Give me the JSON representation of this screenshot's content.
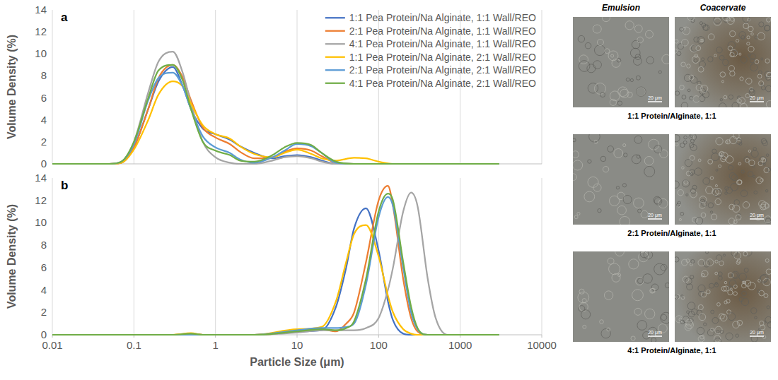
{
  "chart_data": [
    {
      "type": "line",
      "title": "a",
      "ylabel": "Volume Density (%)",
      "log": "x",
      "grid": "x",
      "legend": "upper right",
      "tick_labels": "y",
      "xlim": [
        0.01,
        10000
      ],
      "xticks": [
        0.01,
        0.1,
        1,
        10,
        100,
        1000,
        10000
      ],
      "ylim": [
        0,
        14
      ],
      "yticks": [
        0,
        2,
        4,
        6,
        8,
        10,
        12,
        14
      ],
      "x": [
        0.01,
        0.05,
        0.07,
        0.1,
        0.15,
        0.2,
        0.3,
        0.4,
        0.5,
        0.7,
        1,
        1.5,
        2,
        3,
        5,
        7,
        10,
        15,
        20,
        30,
        50,
        70,
        100,
        150,
        3000
      ],
      "series": [
        {
          "name": "1:1 Pea Protein/Na Alginate, 1:1 Wall/REO",
          "color": "#4472c4",
          "values": [
            0,
            0,
            0.1,
            1.5,
            5,
            7.5,
            8.8,
            7,
            5,
            3.2,
            2.7,
            2.2,
            1.6,
            1,
            0.5,
            0.7,
            0.8,
            0.6,
            0.3,
            0,
            0,
            0,
            0,
            0,
            0
          ]
        },
        {
          "name": "2:1 Pea Protein/Na Alginate, 1:1 Wall/REO",
          "color": "#ed7d31",
          "values": [
            0,
            0,
            0.1,
            1.5,
            5,
            7.8,
            9,
            7.8,
            5.8,
            3.3,
            2.4,
            1.8,
            1.1,
            0.5,
            0.6,
            1.1,
            1.4,
            1.2,
            0.7,
            0.1,
            0,
            0,
            0,
            0,
            0
          ]
        },
        {
          "name": "4:1 Pea Protein/Na Alginate, 1:1 Wall/REO",
          "color": "#a5a5a5",
          "values": [
            0,
            0,
            0.2,
            2,
            6.5,
            9.3,
            10.2,
            8.2,
            5.5,
            2,
            0.6,
            0.1,
            0,
            0,
            0.3,
            0.6,
            0.7,
            0.5,
            0.2,
            0,
            0,
            0,
            0,
            0,
            0
          ]
        },
        {
          "name": "1:1 Pea Protein/Na Alginate, 2:1 Wall/REO",
          "color": "#ffc000",
          "values": [
            0,
            0,
            0.1,
            1.3,
            4,
            6.3,
            7.5,
            7,
            5.5,
            3.5,
            2.7,
            2.3,
            1.6,
            0.9,
            0.6,
            1,
            1.3,
            0.9,
            0.5,
            0.3,
            0.55,
            0.5,
            0.2,
            0,
            0
          ]
        },
        {
          "name": "2:1 Pea Protein/Na Alginate, 2:1 Wall/REO",
          "color": "#5b9bd5",
          "values": [
            0,
            0,
            0.2,
            1.8,
            5.8,
            7.8,
            8.3,
            7,
            5,
            2.5,
            1.5,
            1,
            0.4,
            0.1,
            0.6,
            1.2,
            1.8,
            1.6,
            1,
            0.1,
            0,
            0,
            0,
            0,
            0
          ]
        },
        {
          "name": "4:1 Pea Protein/Na Alginate, 2:1 Wall/REO",
          "color": "#70ad47",
          "values": [
            0,
            0,
            0.2,
            2,
            6,
            8.5,
            9,
            7.5,
            5,
            2,
            1.2,
            0.8,
            0.3,
            0.2,
            0.8,
            1.5,
            1.9,
            1.7,
            1,
            0.2,
            0,
            0,
            0,
            0,
            0
          ]
        }
      ]
    },
    {
      "type": "line",
      "title": "b",
      "ylabel": "Volume Density (%)",
      "xlabel": "Particle Size (μm)",
      "log": "x",
      "grid": "x",
      "tick_labels": true,
      "xlim": [
        0.01,
        10000
      ],
      "xticks": [
        0.01,
        0.1,
        1,
        10,
        100,
        1000,
        10000
      ],
      "ylim": [
        0,
        14
      ],
      "yticks": [
        0,
        2,
        4,
        6,
        8,
        10,
        12,
        14
      ],
      "x": [
        0.01,
        0.3,
        0.5,
        0.7,
        3,
        10,
        20,
        30,
        40,
        50,
        70,
        100,
        130,
        150,
        200,
        250,
        300,
        400,
        500,
        700,
        3000
      ],
      "series": [
        {
          "color": "#4472c4",
          "values": [
            0,
            0,
            0,
            0,
            0,
            0.3,
            0.4,
            2.5,
            6,
            9.5,
            11.3,
            7.5,
            3,
            1.3,
            0.1,
            0,
            0,
            0,
            0,
            0,
            0
          ]
        },
        {
          "color": "#ed7d31",
          "values": [
            0,
            0,
            0.1,
            0,
            0,
            0.3,
            0.5,
            0.3,
            1,
            2,
            6.5,
            12,
            13.3,
            11.5,
            5,
            1.5,
            0.3,
            0,
            0,
            0,
            0
          ]
        },
        {
          "color": "#a5a5a5",
          "values": [
            0,
            0,
            0,
            0,
            0,
            0.2,
            0.4,
            0.4,
            0.4,
            0.4,
            0.6,
            1.5,
            4,
            6,
            11,
            12.7,
            11.5,
            5,
            1.5,
            0,
            0
          ]
        },
        {
          "color": "#ffc000",
          "values": [
            0,
            0,
            0.15,
            0,
            0,
            0.5,
            0.7,
            3,
            6.5,
            9,
            9.8,
            7,
            3.5,
            2,
            0.5,
            0.1,
            0,
            0,
            0,
            0,
            0
          ]
        },
        {
          "color": "#5b9bd5",
          "values": [
            0,
            0,
            0,
            0,
            0,
            0.4,
            0.6,
            0.6,
            0.7,
            1,
            4.5,
            10.5,
            12.3,
            11.5,
            6,
            2,
            0.5,
            0,
            0,
            0,
            0
          ]
        },
        {
          "color": "#70ad47",
          "values": [
            0,
            0,
            0.1,
            0,
            0,
            0.3,
            0.5,
            0.4,
            0.6,
            1.2,
            5,
            11,
            12.6,
            12,
            6.5,
            2.5,
            0.6,
            0,
            0,
            0,
            0
          ]
        }
      ]
    }
  ],
  "micrographs": {
    "headers": [
      "Emulsion",
      "Coacervate"
    ],
    "scale_bar": "20 μm",
    "rows": [
      {
        "caption": "1:1 Protein/Alginate, 1:1"
      },
      {
        "caption": "2:1 Protein/Alginate, 1:1"
      },
      {
        "caption": "4:1 Protein/Alginate, 1:1"
      }
    ]
  }
}
